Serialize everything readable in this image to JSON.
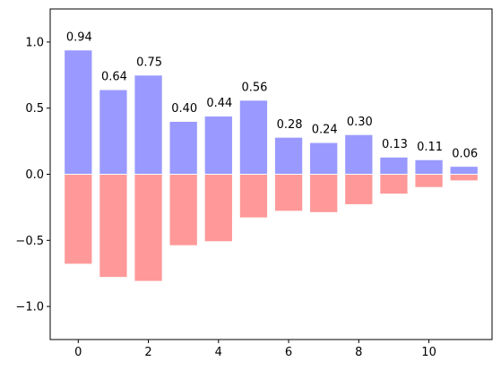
{
  "chart_data": {
    "type": "bar",
    "x": [
      0,
      1,
      2,
      3,
      4,
      5,
      6,
      7,
      8,
      9,
      10,
      11
    ],
    "series": [
      {
        "values": [
          0.94,
          0.64,
          0.75,
          0.4,
          0.44,
          0.56,
          0.28,
          0.24,
          0.3,
          0.13,
          0.11,
          0.06
        ],
        "color": "#9999ff",
        "labels": [
          "0.94",
          "0.64",
          "0.75",
          "0.40",
          "0.44",
          "0.56",
          "0.28",
          "0.24",
          "0.30",
          "0.13",
          "0.11",
          "0.06"
        ]
      },
      {
        "values": [
          -0.68,
          -0.78,
          -0.81,
          -0.54,
          -0.51,
          -0.33,
          -0.28,
          -0.29,
          -0.23,
          -0.15,
          -0.1,
          -0.05
        ],
        "color": "#ff9999"
      }
    ],
    "xlim": [
      -0.8,
      11.8
    ],
    "ylim": [
      -1.25,
      1.25
    ],
    "xticks": [
      0,
      2,
      4,
      6,
      8,
      10
    ],
    "xtick_labels": [
      "0",
      "2",
      "4",
      "6",
      "8",
      "10"
    ],
    "yticks": [
      -1.0,
      -0.5,
      0.0,
      0.5,
      1.0
    ],
    "ytick_labels": [
      "−1.0",
      "−0.5",
      "0.0",
      "0.5",
      "1.0"
    ],
    "title": "",
    "xlabel": "",
    "ylabel": "",
    "grid": false,
    "bar_edge_color": "#ffffff"
  }
}
